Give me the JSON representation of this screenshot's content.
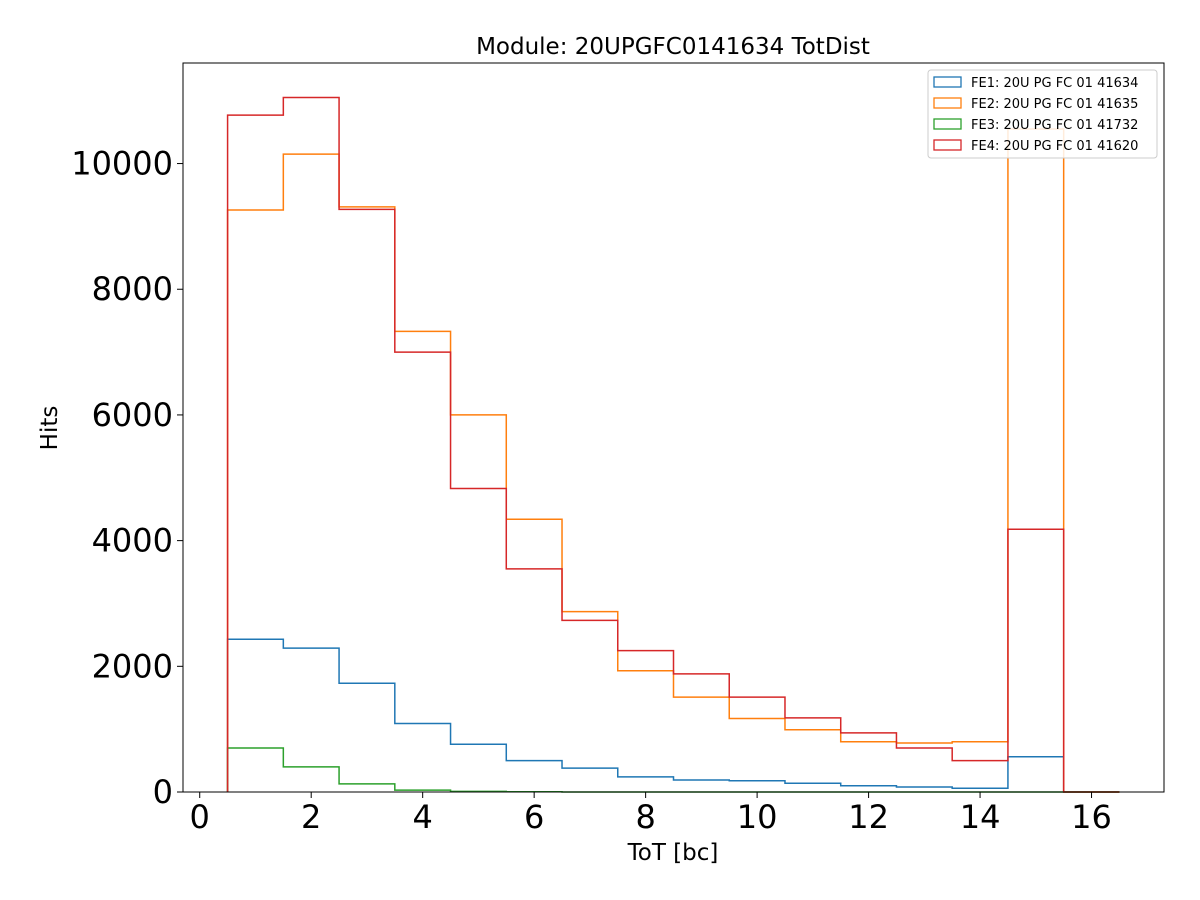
{
  "chart_data": {
    "type": "histogram",
    "title": "Module: 20UPGFC0141634 TotDist",
    "xlabel": "ToT [bc]",
    "ylabel": "Hits",
    "xlim": [
      -0.3,
      17.3
    ],
    "ylim": [
      0,
      11600
    ],
    "xticks": [
      0,
      2,
      4,
      6,
      8,
      10,
      12,
      14,
      16
    ],
    "yticks": [
      0,
      2000,
      4000,
      6000,
      8000,
      10000
    ],
    "grid": false,
    "legend_position": "top-right",
    "bin_edges": [
      0.5,
      1.5,
      2.5,
      3.5,
      4.5,
      5.5,
      6.5,
      7.5,
      8.5,
      9.5,
      10.5,
      11.5,
      12.5,
      13.5,
      14.5,
      15.5,
      16.5
    ],
    "series": [
      {
        "name": "FE1: 20U PG FC 01 41634",
        "color": "#1f77b4",
        "values": [
          2430,
          2290,
          1730,
          1090,
          760,
          500,
          380,
          240,
          190,
          180,
          140,
          100,
          80,
          60,
          560,
          0
        ]
      },
      {
        "name": "FE2: 20U PG FC 01 41635",
        "color": "#ff7f0e",
        "values": [
          9260,
          10150,
          9310,
          7330,
          6000,
          4340,
          2870,
          1930,
          1510,
          1170,
          990,
          800,
          780,
          800,
          10550,
          0
        ]
      },
      {
        "name": "FE3: 20U PG FC 01 41732",
        "color": "#2ca02c",
        "values": [
          700,
          400,
          130,
          30,
          10,
          5,
          0,
          0,
          0,
          0,
          0,
          0,
          0,
          0,
          0,
          0
        ]
      },
      {
        "name": "FE4: 20U PG FC 01 41620",
        "color": "#d62728",
        "values": [
          10770,
          11050,
          9270,
          7000,
          4830,
          3550,
          2730,
          2250,
          1880,
          1510,
          1180,
          940,
          700,
          500,
          4180,
          0
        ]
      }
    ]
  }
}
